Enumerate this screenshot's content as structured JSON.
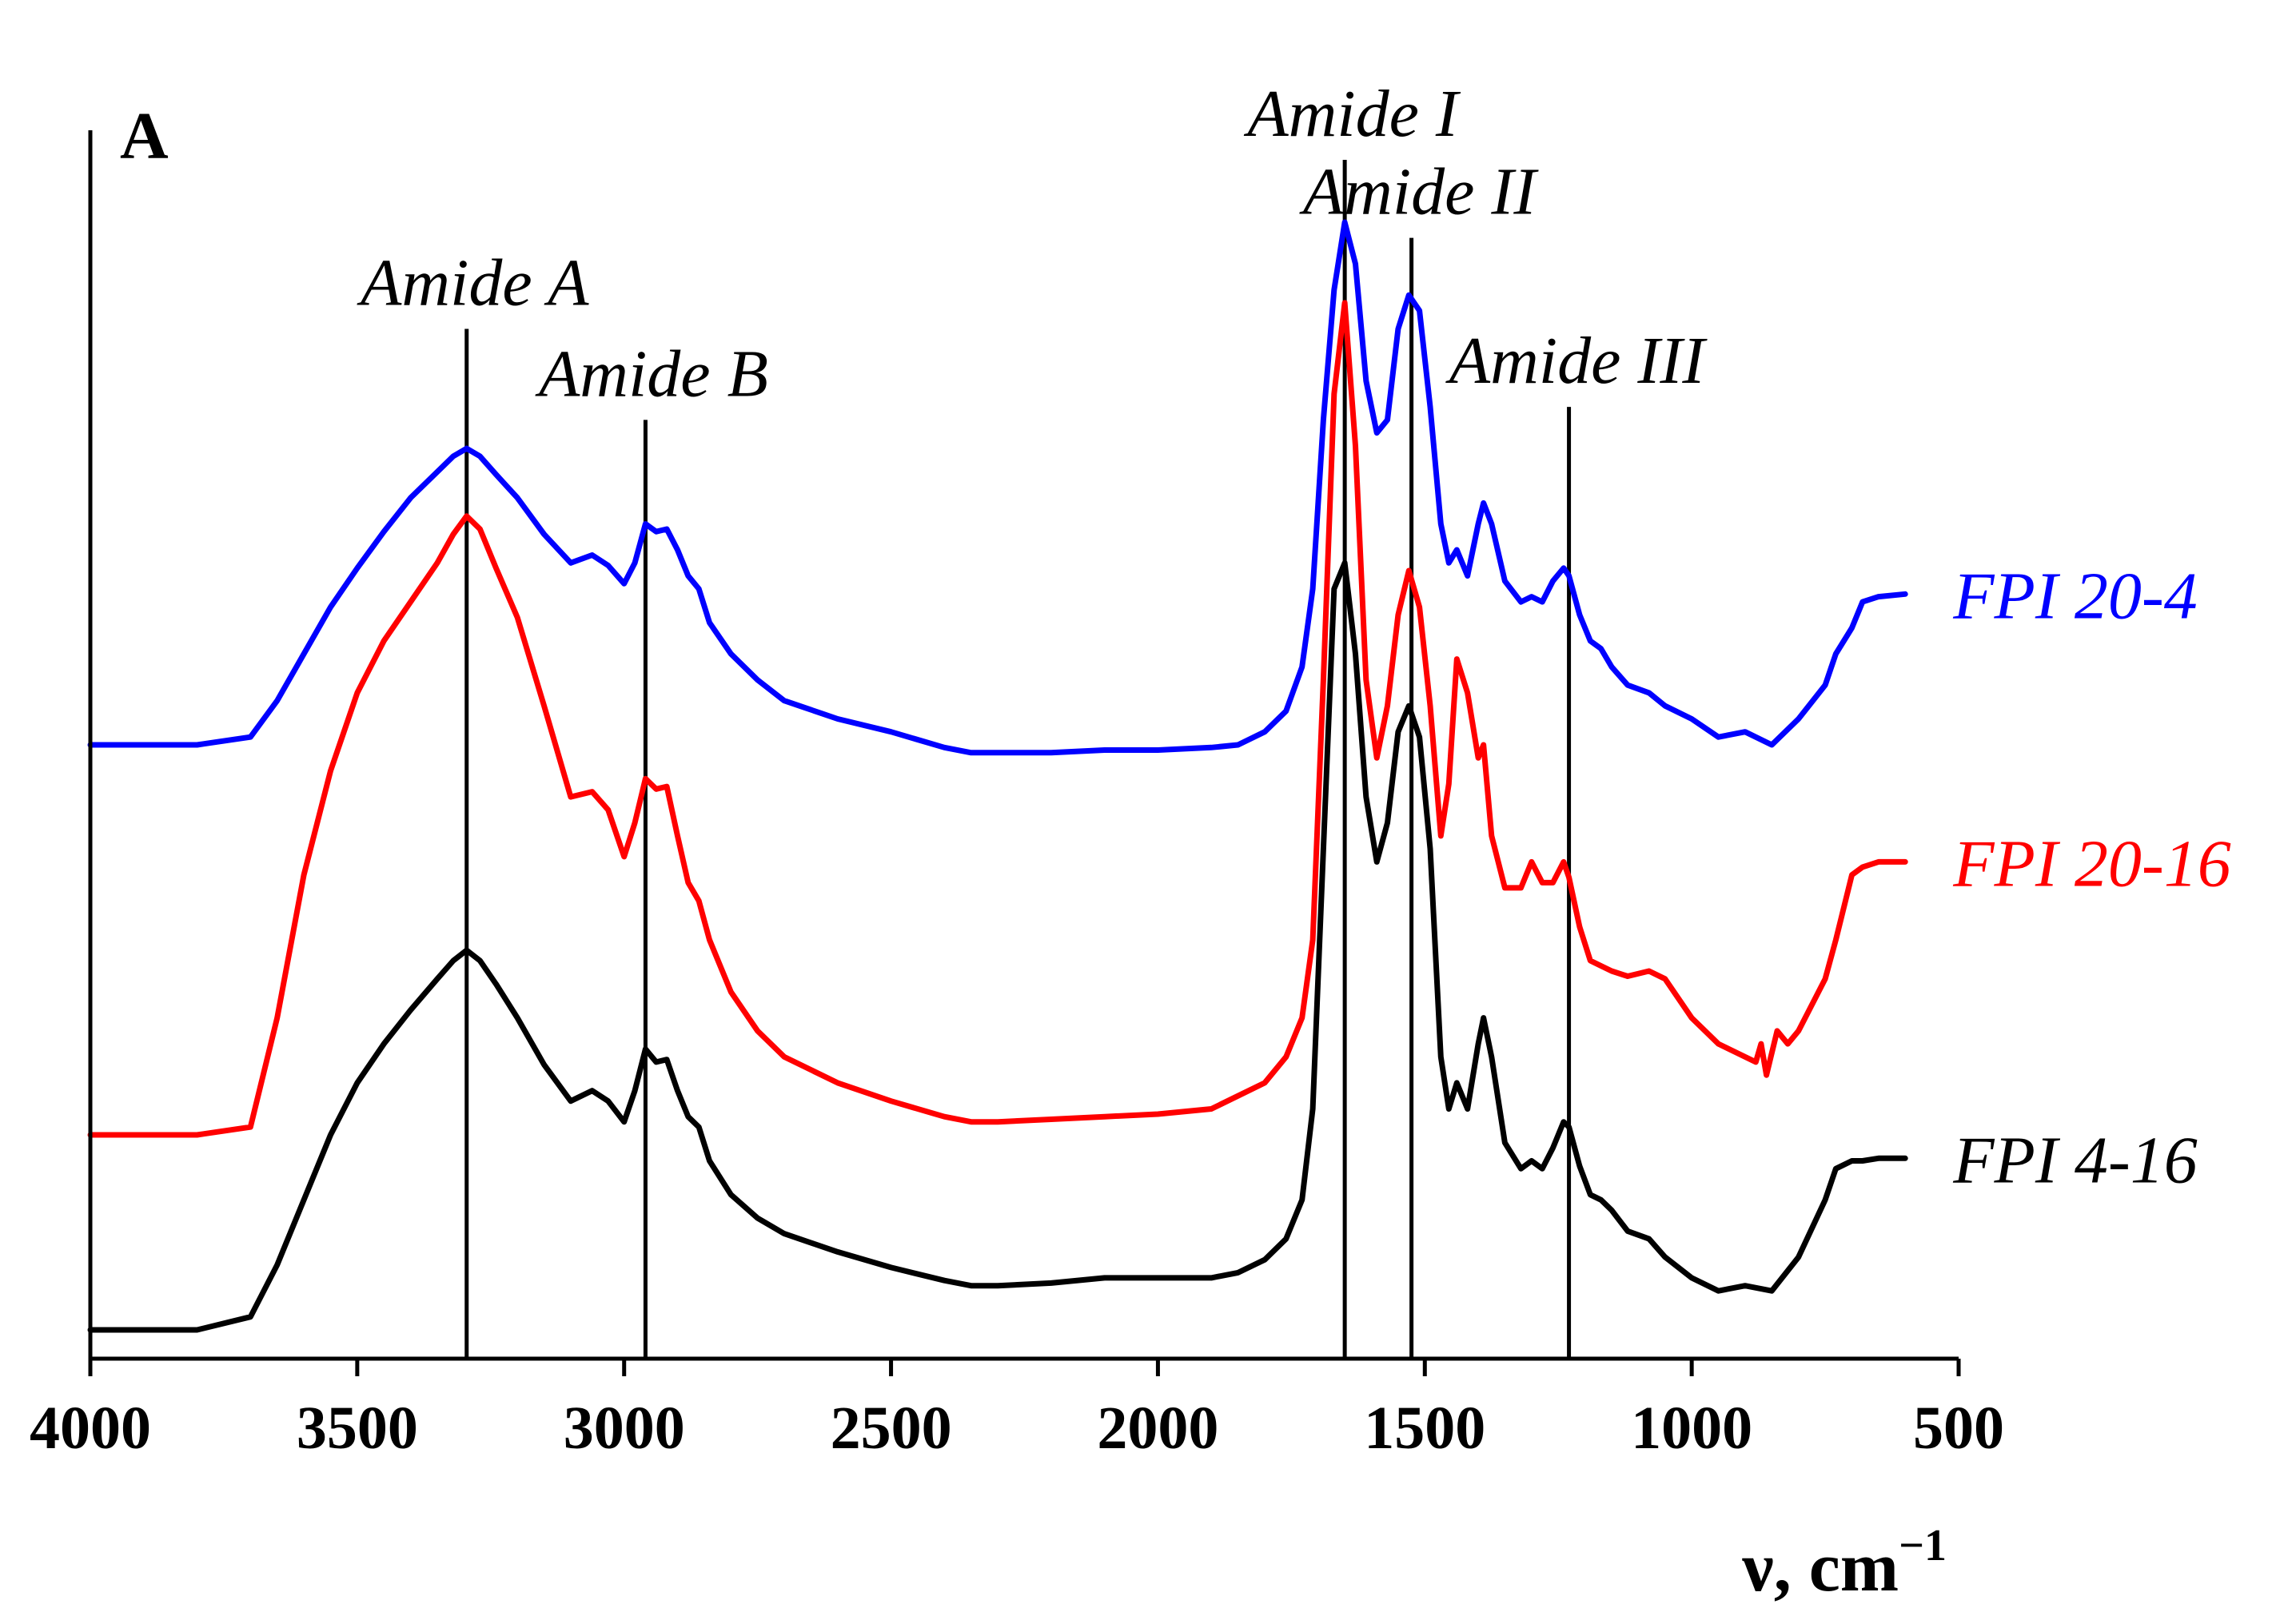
{
  "chart_data": {
    "type": "line",
    "title": "",
    "panel_label": "A",
    "xlabel": {
      "main": "ν, cm",
      "sup": "−1"
    },
    "ylabel": "",
    "xlim": [
      4000,
      500
    ],
    "ylim": [
      0,
      4.5
    ],
    "x_ticks": [
      4000,
      3500,
      3000,
      2500,
      2000,
      1500,
      1000,
      500
    ],
    "x_tick_labels": [
      "4000",
      "3500",
      "3000",
      "2500",
      "2000",
      "1500",
      "1000",
      "500"
    ],
    "grid": false,
    "legend": "right, labels placed beside each curve",
    "band_markers": [
      {
        "label": "Amide A",
        "x": 3295,
        "top": 3.85
      },
      {
        "label": "Amide B",
        "x": 2960,
        "top": 3.5
      },
      {
        "label": "Amide I",
        "x": 1650,
        "top": 4.5
      },
      {
        "label": "Amide II",
        "x": 1525,
        "top": 4.2
      },
      {
        "label": "Amide III",
        "x": 1230,
        "top": 3.55
      }
    ],
    "series": [
      {
        "name": "FPI 20-4",
        "color": "#0000ff",
        "x": [
          4000,
          3800,
          3700,
          3650,
          3600,
          3550,
          3500,
          3450,
          3400,
          3350,
          3320,
          3295,
          3270,
          3240,
          3200,
          3150,
          3100,
          3060,
          3030,
          3000,
          2980,
          2960,
          2940,
          2920,
          2900,
          2880,
          2860,
          2840,
          2800,
          2750,
          2700,
          2600,
          2500,
          2400,
          2350,
          2300,
          2200,
          2100,
          2000,
          1900,
          1850,
          1800,
          1760,
          1730,
          1710,
          1690,
          1670,
          1650,
          1630,
          1610,
          1590,
          1570,
          1550,
          1530,
          1510,
          1490,
          1470,
          1455,
          1440,
          1420,
          1400,
          1390,
          1375,
          1350,
          1320,
          1300,
          1280,
          1260,
          1240,
          1230,
          1210,
          1190,
          1170,
          1150,
          1120,
          1080,
          1050,
          1000,
          950,
          900,
          850,
          800,
          750,
          730,
          700,
          680,
          650,
          600
        ],
        "y": [
          2.25,
          2.25,
          2.28,
          2.42,
          2.6,
          2.78,
          2.93,
          3.07,
          3.2,
          3.3,
          3.36,
          3.39,
          3.36,
          3.29,
          3.2,
          3.06,
          2.95,
          2.98,
          2.94,
          2.87,
          2.95,
          3.1,
          3.07,
          3.08,
          3.0,
          2.9,
          2.85,
          2.72,
          2.6,
          2.5,
          2.42,
          2.35,
          2.3,
          2.24,
          2.22,
          2.22,
          2.22,
          2.23,
          2.23,
          2.24,
          2.25,
          2.3,
          2.38,
          2.55,
          2.85,
          3.5,
          4.0,
          4.26,
          4.1,
          3.65,
          3.45,
          3.5,
          3.85,
          3.98,
          3.92,
          3.55,
          3.1,
          2.95,
          3.0,
          2.9,
          3.1,
          3.18,
          3.1,
          2.88,
          2.8,
          2.82,
          2.8,
          2.88,
          2.93,
          2.9,
          2.75,
          2.65,
          2.62,
          2.55,
          2.48,
          2.45,
          2.4,
          2.35,
          2.28,
          2.3,
          2.25,
          2.35,
          2.48,
          2.6,
          2.7,
          2.8,
          2.82,
          2.83
        ]
      },
      {
        "name": "FPI 20-16",
        "color": "#ff0000",
        "x": [
          4000,
          3800,
          3700,
          3650,
          3600,
          3550,
          3500,
          3450,
          3400,
          3350,
          3320,
          3295,
          3270,
          3240,
          3200,
          3150,
          3100,
          3060,
          3030,
          3000,
          2980,
          2960,
          2940,
          2920,
          2900,
          2880,
          2860,
          2840,
          2800,
          2750,
          2700,
          2600,
          2500,
          2400,
          2350,
          2300,
          2200,
          2100,
          2000,
          1900,
          1850,
          1800,
          1760,
          1730,
          1710,
          1690,
          1670,
          1650,
          1630,
          1610,
          1590,
          1570,
          1550,
          1530,
          1510,
          1490,
          1470,
          1455,
          1440,
          1420,
          1400,
          1390,
          1375,
          1350,
          1320,
          1300,
          1280,
          1260,
          1240,
          1230,
          1210,
          1190,
          1170,
          1150,
          1120,
          1080,
          1050,
          1000,
          950,
          900,
          880,
          870,
          860,
          840,
          820,
          800,
          750,
          730,
          700,
          680,
          650,
          600
        ],
        "y": [
          0.75,
          0.75,
          0.78,
          1.2,
          1.75,
          2.15,
          2.45,
          2.65,
          2.8,
          2.95,
          3.06,
          3.13,
          3.08,
          2.93,
          2.74,
          2.4,
          2.05,
          2.07,
          2.0,
          1.82,
          1.95,
          2.12,
          2.08,
          2.09,
          1.9,
          1.72,
          1.65,
          1.5,
          1.3,
          1.15,
          1.05,
          0.95,
          0.88,
          0.82,
          0.8,
          0.8,
          0.81,
          0.82,
          0.83,
          0.85,
          0.9,
          0.95,
          1.05,
          1.2,
          1.5,
          2.5,
          3.6,
          3.95,
          3.4,
          2.5,
          2.2,
          2.4,
          2.75,
          2.92,
          2.78,
          2.4,
          1.9,
          2.1,
          2.58,
          2.45,
          2.2,
          2.25,
          1.9,
          1.7,
          1.7,
          1.8,
          1.72,
          1.72,
          1.8,
          1.74,
          1.55,
          1.42,
          1.4,
          1.38,
          1.36,
          1.38,
          1.35,
          1.2,
          1.1,
          1.05,
          1.03,
          1.1,
          0.98,
          1.15,
          1.1,
          1.15,
          1.35,
          1.5,
          1.75,
          1.78,
          1.8,
          1.8
        ]
      },
      {
        "name": "FPI 4-16",
        "color": "#000000",
        "x": [
          4000,
          3800,
          3700,
          3650,
          3600,
          3550,
          3500,
          3450,
          3400,
          3350,
          3320,
          3295,
          3270,
          3240,
          3200,
          3150,
          3100,
          3060,
          3030,
          3000,
          2980,
          2960,
          2940,
          2920,
          2900,
          2880,
          2860,
          2840,
          2800,
          2750,
          2700,
          2600,
          2500,
          2400,
          2350,
          2300,
          2200,
          2100,
          2000,
          1900,
          1850,
          1800,
          1760,
          1730,
          1710,
          1690,
          1670,
          1650,
          1630,
          1610,
          1590,
          1570,
          1550,
          1530,
          1510,
          1490,
          1470,
          1455,
          1440,
          1420,
          1400,
          1390,
          1375,
          1350,
          1320,
          1300,
          1280,
          1260,
          1240,
          1230,
          1210,
          1190,
          1170,
          1150,
          1120,
          1080,
          1050,
          1000,
          950,
          900,
          850,
          800,
          750,
          730,
          700,
          680,
          650,
          600
        ],
        "y": [
          0.0,
          0.0,
          0.05,
          0.25,
          0.5,
          0.75,
          0.95,
          1.1,
          1.23,
          1.35,
          1.42,
          1.46,
          1.42,
          1.33,
          1.2,
          1.02,
          0.88,
          0.92,
          0.88,
          0.8,
          0.92,
          1.08,
          1.03,
          1.04,
          0.92,
          0.82,
          0.78,
          0.65,
          0.52,
          0.43,
          0.37,
          0.3,
          0.24,
          0.19,
          0.17,
          0.17,
          0.18,
          0.2,
          0.2,
          0.2,
          0.22,
          0.27,
          0.35,
          0.5,
          0.85,
          1.85,
          2.85,
          2.95,
          2.6,
          2.05,
          1.8,
          1.95,
          2.3,
          2.4,
          2.28,
          1.85,
          1.05,
          0.85,
          0.95,
          0.85,
          1.1,
          1.2,
          1.05,
          0.72,
          0.62,
          0.65,
          0.62,
          0.7,
          0.8,
          0.78,
          0.63,
          0.52,
          0.5,
          0.46,
          0.38,
          0.35,
          0.28,
          0.2,
          0.15,
          0.17,
          0.15,
          0.28,
          0.5,
          0.62,
          0.65,
          0.65,
          0.66,
          0.66
        ]
      }
    ]
  }
}
